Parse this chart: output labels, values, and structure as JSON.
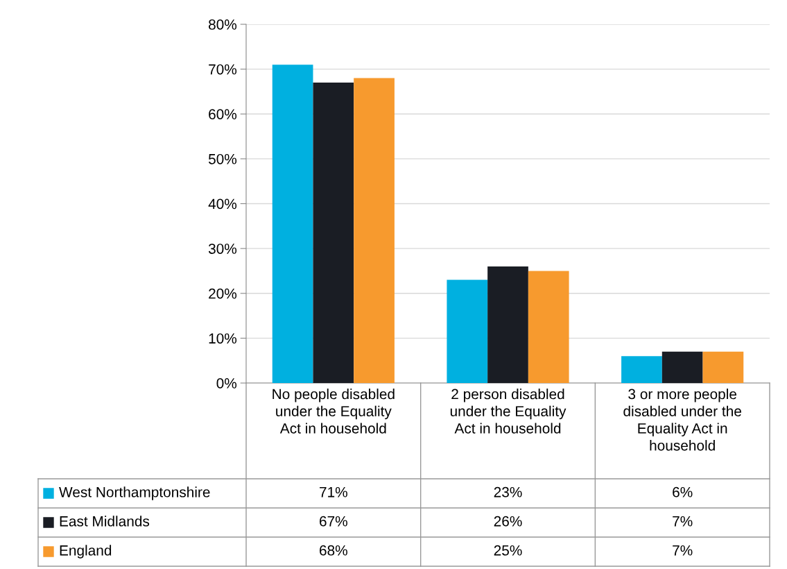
{
  "chart_data": {
    "type": "bar",
    "categories": [
      "No people disabled under the Equality Act in household",
      "2 person disabled under the Equality Act in household",
      "3 or more people disabled under the Equality Act in household"
    ],
    "series": [
      {
        "name": "West Northamptonshire",
        "color": "#00b0e0",
        "values": [
          71,
          23,
          6
        ],
        "value_labels": [
          "71%",
          "23%",
          "6%"
        ]
      },
      {
        "name": "East Midlands",
        "color": "#1a1d24",
        "values": [
          67,
          26,
          7
        ],
        "value_labels": [
          "67%",
          "26%",
          "7%"
        ]
      },
      {
        "name": "England",
        "color": "#f79a2e",
        "values": [
          68,
          25,
          7
        ],
        "value_labels": [
          "68%",
          "25%",
          "7%"
        ]
      }
    ],
    "ylim": [
      0,
      80
    ],
    "yticks": [
      {
        "value": 0,
        "label": "0%"
      },
      {
        "value": 10,
        "label": "10%"
      },
      {
        "value": 20,
        "label": "20%"
      },
      {
        "value": 30,
        "label": "30%"
      },
      {
        "value": 40,
        "label": "40%"
      },
      {
        "value": 50,
        "label": "50%"
      },
      {
        "value": 60,
        "label": "60%"
      },
      {
        "value": 70,
        "label": "70%"
      },
      {
        "value": 80,
        "label": "80%"
      }
    ],
    "grid": "y",
    "legend": "bottom"
  }
}
